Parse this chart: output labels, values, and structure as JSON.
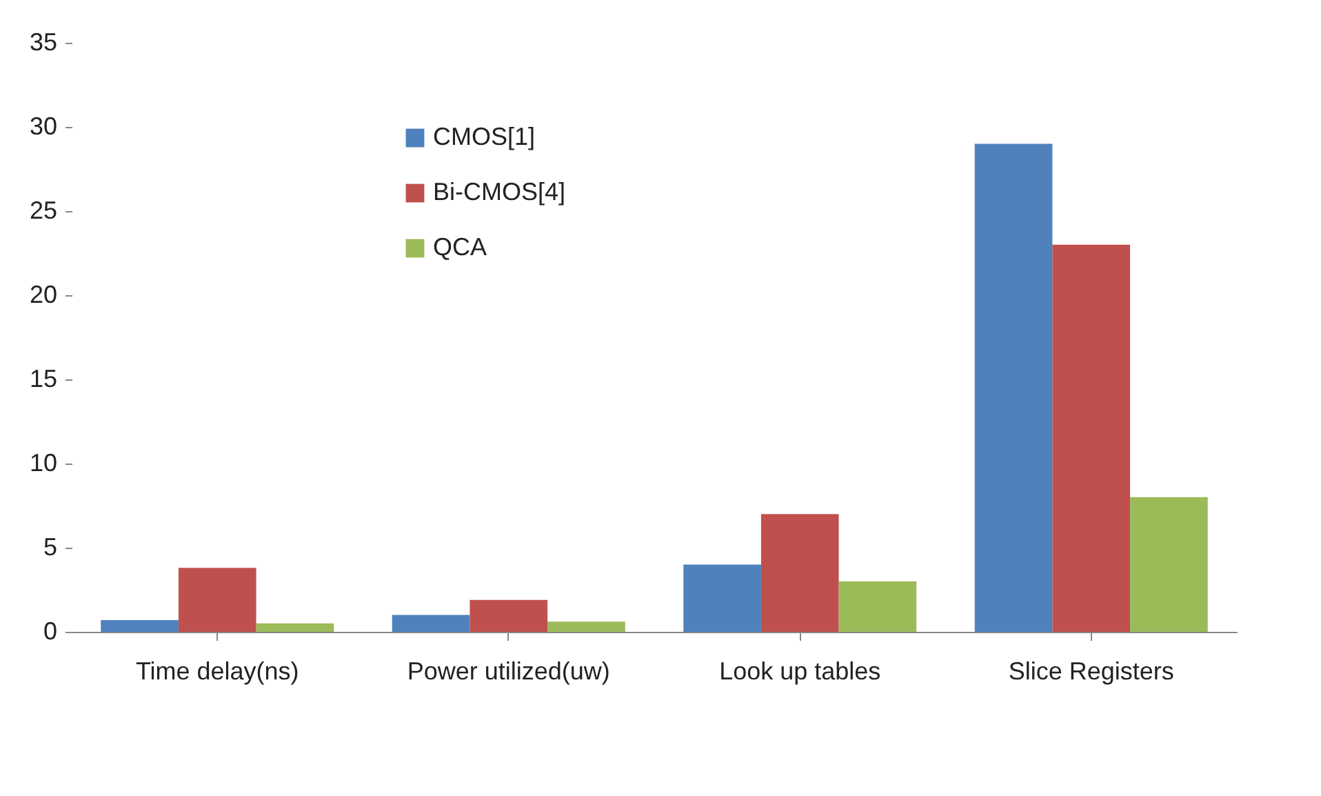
{
  "chart_data": {
    "type": "bar",
    "categories": [
      "Time delay(ns)",
      "Power utilized(uw)",
      "Look up tables",
      "Slice Registers"
    ],
    "series": [
      {
        "name": "CMOS[1]",
        "color": "#4f81bd",
        "values": [
          0.7,
          1,
          4,
          29
        ]
      },
      {
        "name": " Bi-CMOS[4]",
        "color": "#c0504d",
        "values": [
          3.8,
          1.9,
          7,
          23
        ]
      },
      {
        "name": "QCA",
        "color": "#9bbb59",
        "values": [
          0.5,
          0.6,
          3,
          8
        ]
      }
    ],
    "ylim": [
      0,
      35
    ],
    "yticks": [
      0,
      5,
      10,
      15,
      20,
      25,
      30,
      35
    ],
    "grid": false,
    "legend": "top left"
  }
}
